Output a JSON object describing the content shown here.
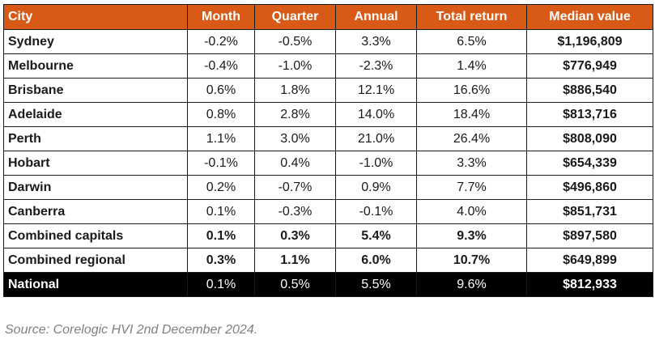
{
  "chart_data": {
    "type": "table",
    "columns": [
      "City",
      "Month",
      "Quarter",
      "Annual",
      "Total return",
      "Median value"
    ],
    "rows": [
      {
        "city": "Sydney",
        "month": "-0.2%",
        "quarter": "-0.5%",
        "annual": "3.3%",
        "total_return": "6.5%",
        "median_value": "$1,196,809",
        "style": "normal"
      },
      {
        "city": "Melbourne",
        "month": "-0.4%",
        "quarter": "-1.0%",
        "annual": "-2.3%",
        "total_return": "1.4%",
        "median_value": "$776,949",
        "style": "normal"
      },
      {
        "city": "Brisbane",
        "month": "0.6%",
        "quarter": "1.8%",
        "annual": "12.1%",
        "total_return": "16.6%",
        "median_value": "$886,540",
        "style": "normal"
      },
      {
        "city": "Adelaide",
        "month": "0.8%",
        "quarter": "2.8%",
        "annual": "14.0%",
        "total_return": "18.4%",
        "median_value": "$813,716",
        "style": "normal"
      },
      {
        "city": "Perth",
        "month": "1.1%",
        "quarter": "3.0%",
        "annual": "21.0%",
        "total_return": "26.4%",
        "median_value": "$808,090",
        "style": "normal"
      },
      {
        "city": "Hobart",
        "month": "-0.1%",
        "quarter": "0.4%",
        "annual": "-1.0%",
        "total_return": "3.3%",
        "median_value": "$654,339",
        "style": "normal"
      },
      {
        "city": "Darwin",
        "month": "0.2%",
        "quarter": "-0.7%",
        "annual": "0.9%",
        "total_return": "7.7%",
        "median_value": "$496,860",
        "style": "normal"
      },
      {
        "city": "Canberra",
        "month": "0.1%",
        "quarter": "-0.3%",
        "annual": "-0.1%",
        "total_return": "4.0%",
        "median_value": "$851,731",
        "style": "normal"
      },
      {
        "city": "Combined capitals",
        "month": "0.1%",
        "quarter": "0.3%",
        "annual": "5.4%",
        "total_return": "9.3%",
        "median_value": "$897,580",
        "style": "bold"
      },
      {
        "city": "Combined regional",
        "month": "0.3%",
        "quarter": "1.1%",
        "annual": "6.0%",
        "total_return": "10.7%",
        "median_value": "$649,899",
        "style": "bold"
      },
      {
        "city": "National",
        "month": "0.1%",
        "quarter": "0.5%",
        "annual": "5.5%",
        "total_return": "9.6%",
        "median_value": "$812,933",
        "style": "national"
      }
    ],
    "source": "Source: Corelogic HVI 2nd December 2024."
  },
  "colors": {
    "header_bg": "#d95a16",
    "header_text": "#ffffff",
    "national_bg": "#000000",
    "national_text": "#ffffff",
    "border": "#1a1a1a",
    "source_text": "#808080"
  }
}
